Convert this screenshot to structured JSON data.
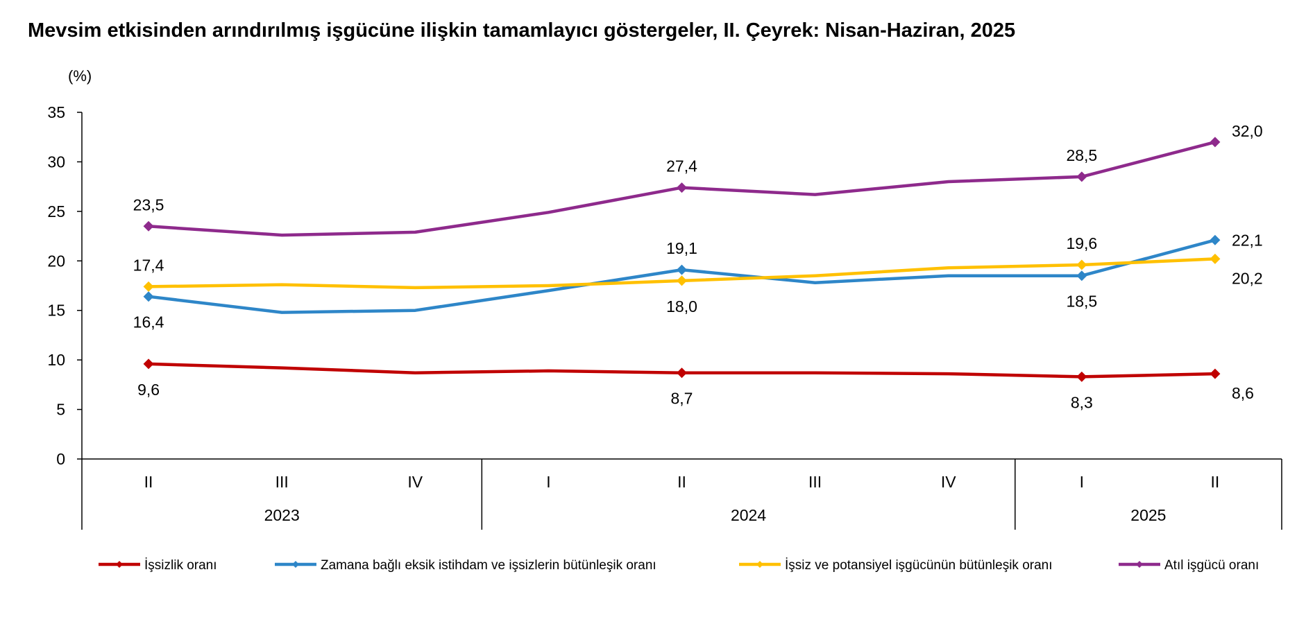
{
  "chart_data": {
    "type": "line",
    "title": "Mevsim etkisinden arındırılmış işgücüne ilişkin tamamlayıcı göstergeler, II. Çeyrek: Nisan-Haziran, 2025",
    "ylabel": "(%)",
    "xlabel": "",
    "ylim": [
      0,
      35
    ],
    "yticks": [
      "0",
      "5",
      "10",
      "15",
      "20",
      "25",
      "30",
      "35"
    ],
    "categories": [
      "II",
      "III",
      "IV",
      "I",
      "II",
      "III",
      "IV",
      "I",
      "II"
    ],
    "years": [
      {
        "label": "2023",
        "start": 0,
        "end": 2
      },
      {
        "label": "2024",
        "start": 3,
        "end": 6
      },
      {
        "label": "2025",
        "start": 7,
        "end": 8
      }
    ],
    "grid": false,
    "legend_position": "bottom",
    "series": [
      {
        "name": "İşsizlik oranı",
        "color": "#c00000",
        "values": [
          9.6,
          9.2,
          8.7,
          8.9,
          8.7,
          8.7,
          8.6,
          8.3,
          8.6
        ],
        "labels": [
          {
            "index": 0,
            "text": "9,6",
            "pos": "below"
          },
          {
            "index": 4,
            "text": "8,7",
            "pos": "below"
          },
          {
            "index": 7,
            "text": "8,3",
            "pos": "below"
          },
          {
            "index": 8,
            "text": "8,6",
            "pos": "below-right"
          }
        ]
      },
      {
        "name": "Zamana bağlı eksik istihdam ve işsizlerin bütünleşik oranı",
        "color": "#2e86c8",
        "values": [
          16.4,
          14.8,
          15.0,
          17.0,
          19.1,
          17.8,
          18.5,
          18.5,
          22.1
        ],
        "labels": [
          {
            "index": 0,
            "text": "16,4",
            "pos": "below"
          },
          {
            "index": 4,
            "text": "19,1",
            "pos": "above"
          },
          {
            "index": 7,
            "text": "18,5",
            "pos": "below"
          },
          {
            "index": 8,
            "text": "22,1",
            "pos": "right"
          }
        ]
      },
      {
        "name": "İşsiz ve potansiyel işgücünün bütünleşik oranı",
        "color": "#ffc000",
        "values": [
          17.4,
          17.6,
          17.3,
          17.5,
          18.0,
          18.5,
          19.3,
          19.6,
          20.2
        ],
        "labels": [
          {
            "index": 0,
            "text": "17,4",
            "pos": "above"
          },
          {
            "index": 4,
            "text": "18,0",
            "pos": "below"
          },
          {
            "index": 7,
            "text": "19,6",
            "pos": "above"
          },
          {
            "index": 8,
            "text": "20,2",
            "pos": "below-right"
          }
        ]
      },
      {
        "name": "Atıl işgücü oranı",
        "color": "#8e2a8c",
        "values": [
          23.5,
          22.6,
          22.9,
          24.9,
          27.4,
          26.7,
          28.0,
          28.5,
          32.0
        ],
        "labels": [
          {
            "index": 0,
            "text": "23,5",
            "pos": "above"
          },
          {
            "index": 4,
            "text": "27,4",
            "pos": "above"
          },
          {
            "index": 7,
            "text": "28,5",
            "pos": "above"
          },
          {
            "index": 8,
            "text": "32,0",
            "pos": "above-right"
          }
        ]
      }
    ]
  }
}
